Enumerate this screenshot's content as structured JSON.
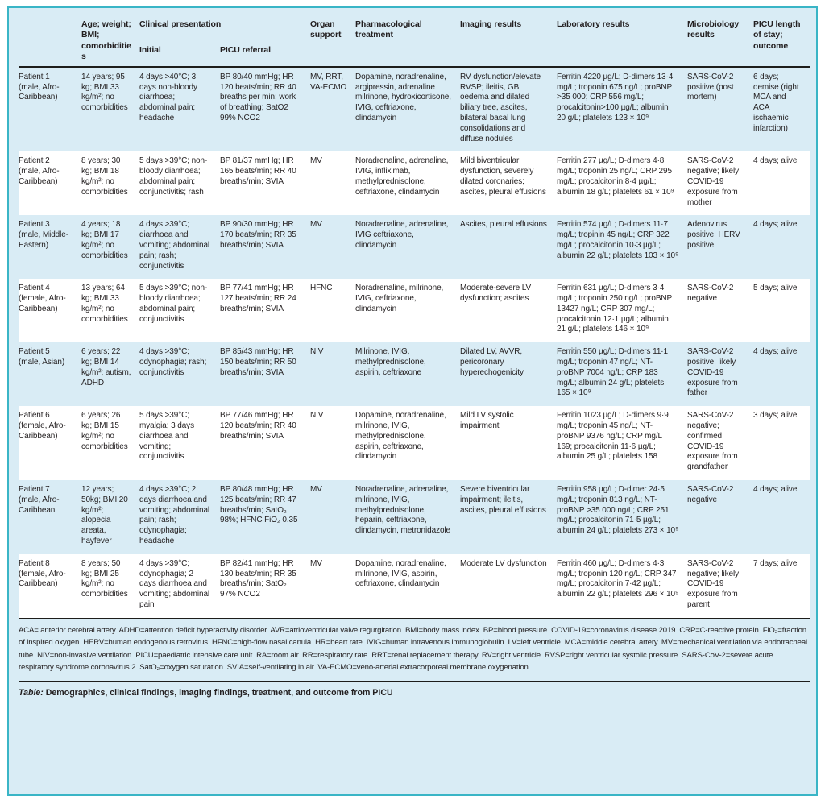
{
  "table": {
    "header": {
      "col_patient": "",
      "col_age": "Age; weight; BMI; comorbidities",
      "col_clinical": "Clinical presentation",
      "sub_initial": "Initial",
      "sub_picu": "PICU referral",
      "col_organ": "Organ support",
      "col_pharma": "Pharmacological treatment",
      "col_imaging": "Imaging results",
      "col_lab": "Laboratory results",
      "col_micro": "Microbiology results",
      "col_outcome": "PICU length of stay; outcome"
    },
    "rows": [
      {
        "patient": "Patient 1 (male, Afro-Caribbean)",
        "age": "14 years; 95 kg; BMI 33 kg/m²; no comorbidities",
        "initial": "4 days >40°C; 3 days non-bloody diarrhoea; abdominal pain; headache",
        "picu_referral": "BP 80/40 mmHg; HR 120 beats/min; RR 40 breaths per min; work of breathing; SatO2 99% NCO2",
        "organ_support": "MV, RRT, VA-ECMO",
        "pharmacological": "Dopamine, noradrenaline, argipressin, adrenaline milrinone, hydroxicortisone, IVIG, ceftriaxone, clindamycin",
        "imaging": "RV dysfunction/elevate RVSP; ileitis, GB oedema and dilated biliary tree, ascites, bilateral basal lung consolidations and diffuse nodules",
        "laboratory": "Ferritin 4220 µg/L; D-dimers 13·4 mg/L; troponin 675 ng/L; proBNP >35 000; CRP 556 mg/L; procalcitonin>100 µg/L; albumin 20 g/L; platelets 123 × 10⁹",
        "microbiology": "SARS-CoV-2 positive (post mortem)",
        "outcome": "6 days; demise (right MCA and ACA ischaemic infarction)"
      },
      {
        "patient": "Patient 2 (male, Afro-Caribbean)",
        "age": "8 years; 30 kg; BMI 18 kg/m²; no comorbidities",
        "initial": "5 days >39°C; non-bloody diarrhoea; abdominal pain; conjunctivitis; rash",
        "picu_referral": "BP 81/37 mmHg; HR 165 beats/min; RR 40 breaths/min; SVIA",
        "organ_support": "MV",
        "pharmacological": "Noradrenaline, adrenaline, IVIG, infliximab, methylprednisolone, ceftriaxone, clindamycin",
        "imaging": "Mild biventricular dysfunction, severely dilated coronaries; ascites, pleural effusions",
        "laboratory": "Ferritin 277 µg/L; D-dimers 4·8 mg/L; troponin 25 ng/L; CRP 295 mg/L; procalcitonin 8·4 µg/L; albumin 18 g/L; platelets 61 × 10⁹",
        "microbiology": "SARS-CoV-2 negative; likely COVID-19 exposure from mother",
        "outcome": "4 days; alive"
      },
      {
        "patient": "Patient 3 (male, Middle-Eastern)",
        "age": "4 years; 18 kg; BMI 17 kg/m²; no comorbidities",
        "initial": "4 days >39°C; diarrhoea and vomiting; abdominal pain; rash; conjunctivitis",
        "picu_referral": "BP 90/30 mmHg; HR 170 beats/min; RR 35 breaths/min; SVIA",
        "organ_support": "MV",
        "pharmacological": "Noradrenaline, adrenaline, IVIG ceftriaxone, clindamycin",
        "imaging": "Ascites, pleural effusions",
        "laboratory": "Ferritin 574 µg/L; D-dimers 11·7 mg/L; tropinin 45 ng/L; CRP 322 mg/L; procalcitonin 10·3 µg/L; albumin 22 g/L; platelets 103 × 10⁹",
        "microbiology": "Adenovirus positive; HERV positive",
        "outcome": "4 days; alive"
      },
      {
        "patient": "Patient 4 (female, Afro-Caribbean)",
        "age": "13 years; 64 kg; BMI 33 kg/m²; no comorbidities",
        "initial": "5 days >39°C; non-bloody diarrhoea; abdominal pain; conjunctivitis",
        "picu_referral": "BP 77/41 mmHg; HR 127 beats/min; RR 24 breaths/min; SVIA",
        "organ_support": "HFNC",
        "pharmacological": "Noradrenaline, milrinone, IVIG, ceftriaxone, clindamycin",
        "imaging": "Moderate-severe LV dysfunction; ascites",
        "laboratory": "Ferritin 631 µg/L; D-dimers 3·4 mg/L; troponin 250 ng/L; proBNP 13427 ng/L; CRP 307 mg/L; procalcitonin 12·1 µg/L; albumin 21 g/L; platelets 146 × 10⁹",
        "microbiology": "SARS-CoV-2 negative",
        "outcome": "5 days; alive"
      },
      {
        "patient": "Patient 5 (male, Asian)",
        "age": "6 years; 22 kg; BMI 14 kg/m²; autism, ADHD",
        "initial": "4 days >39°C; odynophagia; rash; conjunctivitis",
        "picu_referral": "BP 85/43 mmHg; HR 150 beats/min; RR 50 breaths/min; SVIA",
        "organ_support": "NIV",
        "pharmacological": "Milrinone, IVIG, methylprednisolone, aspirin, ceftriaxone",
        "imaging": "Dilated LV, AVVR, pericoronary hyperechogenicity",
        "laboratory": "Ferritin 550 µg/L; D-dimers 11·1 mg/L; troponin 47 ng/L; NT-proBNP 7004 ng/L; CRP 183 mg/L; albumin 24 g/L; platelets 165 × 10⁹",
        "microbiology": "SARS-CoV-2 positive; likely COVID-19 exposure from father",
        "outcome": "4 days; alive"
      },
      {
        "patient": "Patient 6 (female, Afro-Caribbean)",
        "age": "6 years; 26 kg; BMI 15 kg/m²; no comorbidities",
        "initial": "5 days >39°C; myalgia; 3 days diarrhoea and vomiting; conjunctivitis",
        "picu_referral": "BP 77/46 mmHg; HR 120 beats/min; RR 40 breaths/min; SVIA",
        "organ_support": "NIV",
        "pharmacological": "Dopamine, noradrenaline, milrinone, IVIG, methylprednisolone, aspirin, ceftriaxone, clindamycin",
        "imaging": "Mild LV systolic impairment",
        "laboratory": "Ferritin 1023 µg/L; D-dimers 9·9 mg/L; troponin 45 ng/L; NT-proBNP 9376 ng/L; CRP mg/L 169; procalcitonin 11·6 µg/L; albumin 25 g/L; platelets 158",
        "microbiology": "SARS-CoV-2 negative; confirmed COVID-19 exposure from grandfather",
        "outcome": "3 days; alive"
      },
      {
        "patient": "Patient 7 (male, Afro-Caribbean",
        "age": "12 years; 50kg; BMI 20 kg/m²; alopecia areata, hayfever",
        "initial": "4 days >39°C; 2 days diarrhoea and vomiting; abdominal pain; rash; odynophagia; headache",
        "picu_referral": "BP 80/48 mmHg; HR 125 beats/min; RR 47 breaths/min; SatO₂ 98%; HFNC FiO₂ 0.35",
        "organ_support": "MV",
        "pharmacological": "Noradrenaline, adrenaline, milrinone, IVIG, methylprednisolone, heparin, ceftriaxone, clindamycin, metronidazole",
        "imaging": "Severe biventricular impairment; ileitis, ascites, pleural effusions",
        "laboratory": "Ferritin 958 µg/L; D-dimer 24·5 mg/L; troponin 813 ng/L; NT-proBNP >35 000 ng/L; CRP 251 mg/L; procalcitonin 71·5 µg/L; albumin 24 g/L; platelets 273 × 10⁹",
        "microbiology": "SARS-CoV-2 negative",
        "outcome": "4 days; alive"
      },
      {
        "patient": "Patient 8 (female, Afro-Caribbean)",
        "age": "8 years; 50 kg; BMI 25 kg/m²; no comorbidities",
        "initial": "4 days >39°C; odynophagia; 2 days diarrhoea and vomiting; abdominal pain",
        "picu_referral": "BP 82/41 mmHg; HR 130 beats/min; RR 35 breaths/min; SatO₂ 97% NCO2",
        "organ_support": "MV",
        "pharmacological": "Dopamine, noradrenaline, milrinone, IVIG, aspirin, ceftriaxone, clindamycin",
        "imaging": "Moderate LV dysfunction",
        "laboratory": "Ferritin 460 µg/L; D-dimers 4·3 mg/L; troponin 120 ng/L; CRP 347 mg/L; procalcitonin 7·42 µg/L; albumin 22 g/L; platelets 296 × 10⁹",
        "microbiology": "SARS-CoV-2 negative; likely COVID-19 exposure from parent",
        "outcome": "7 days; alive"
      }
    ],
    "footnote": "ACA= anterior cerebral artery. ADHD=attention deficit hyperactivity disorder. AVR=atrioventricular valve regurgitation. BMI=body mass index. BP=blood pressure. COVID-19=coronavirus disease 2019. CRP=C-reactive protein. FiO₂=fraction of inspired oxygen. HERV=human endogenous retrovirus. HFNC=high-flow nasal canula. HR=heart rate. IVIG=human intravenous immunoglobulin. LV=left ventricle. MCA=middle cerebral artery. MV=mechanical ventilation via endotracheal tube. NIV=non-invasive ventilation. PICU=paediatric intensive care unit. RA=room air. RR=respiratory rate. RRT=renal replacement therapy. RV=right ventricle. RVSP=right ventricular systolic pressure. SARS-CoV-2=severe acute respiratory syndrome coronavirus 2. SatO₂=oxygen saturation. SVIA=self-ventilating in air. VA-ECMO=veno-arterial extracorporeal membrane oxygenation.",
    "caption_label": "Table:",
    "caption_text": " Demographics, clinical findings, imaging findings, treatment, and outcome from PICU"
  },
  "colors": {
    "frame_border": "#3ab5c6",
    "row_highlight": "#d9ecf5",
    "rule": "#1d1d1b",
    "text": "#231f20"
  }
}
